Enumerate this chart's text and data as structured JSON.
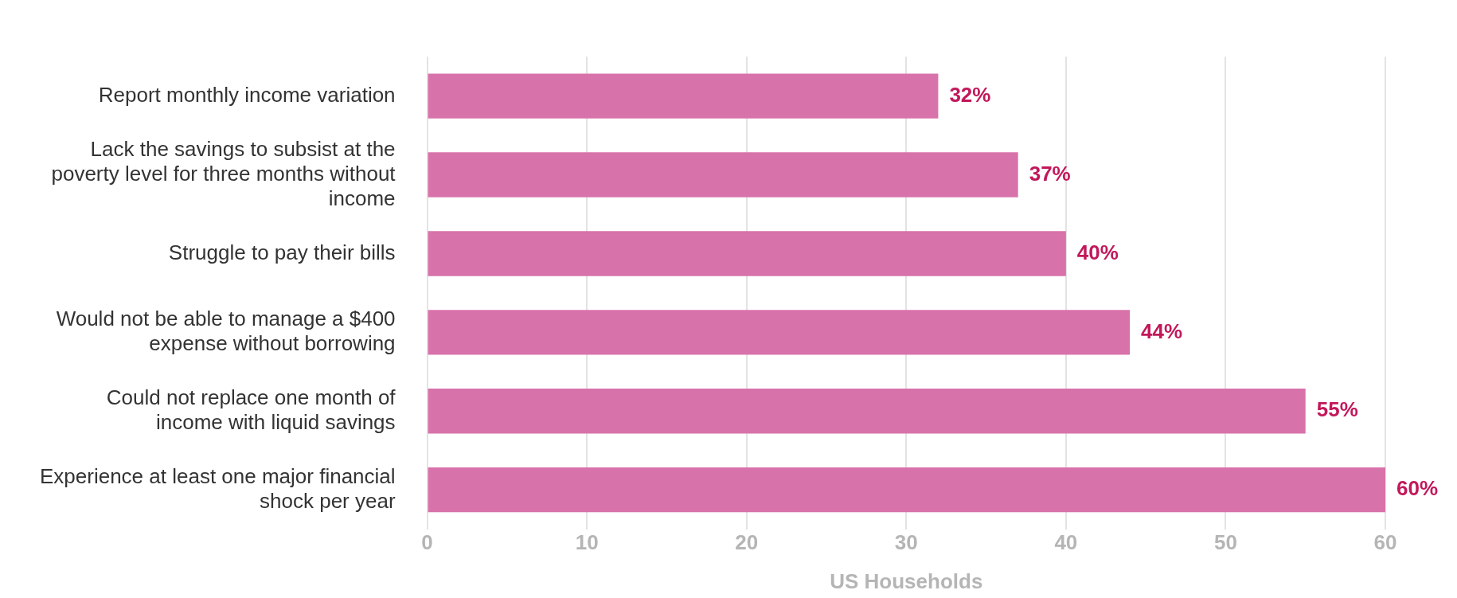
{
  "chart_data": {
    "type": "bar",
    "orientation": "horizontal",
    "xlabel": "US Households",
    "categories": [
      "Report monthly income variation",
      "Lack the savings to subsist at the poverty level for three months without income",
      "Struggle to pay their bills",
      "Would not be able to manage a $400 expense without borrowing",
      "Could not replace one month of income with liquid savings",
      "Experience at least one major financial shock per year"
    ],
    "values": [
      32,
      37,
      40,
      44,
      55,
      60
    ],
    "value_labels": [
      "32%",
      "37%",
      "40%",
      "44%",
      "55%",
      "60%"
    ],
    "color": "#d872aa",
    "xlim": [
      0,
      60
    ],
    "xticks": [
      0,
      10,
      20,
      30,
      40,
      50,
      60
    ],
    "grid": "x",
    "legend": false
  }
}
